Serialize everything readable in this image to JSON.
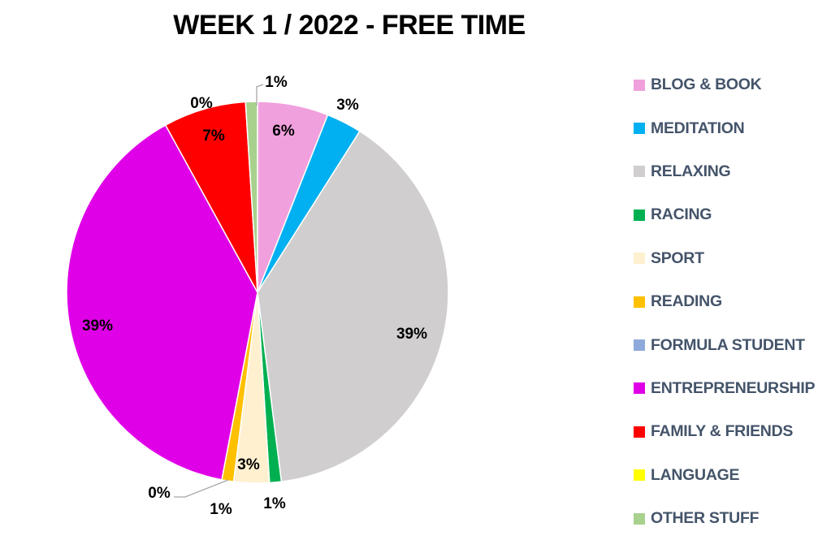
{
  "chart_data": {
    "type": "pie",
    "title": "WEEK 1 / 2022 - FREE TIME",
    "legend_position": "right",
    "series": [
      {
        "name": "BLOG & BOOK",
        "value": 6,
        "label": "6%",
        "color": "#F0A0DC"
      },
      {
        "name": "MEDITATION",
        "value": 3,
        "label": "3%",
        "color": "#00B0F0"
      },
      {
        "name": "RELAXING",
        "value": 39,
        "label": "39%",
        "color": "#D0CECE"
      },
      {
        "name": "RACING",
        "value": 1,
        "label": "1%",
        "color": "#00B050"
      },
      {
        "name": "SPORT",
        "value": 3,
        "label": "3%",
        "color": "#FFF0D0"
      },
      {
        "name": "READING",
        "value": 1,
        "label": "1%",
        "color": "#FFC000"
      },
      {
        "name": "FORMULA STUDENT",
        "value": 0,
        "label": "0%",
        "color": "#8EA9DB"
      },
      {
        "name": "ENTREPRENEURSHIP",
        "value": 39,
        "label": "39%",
        "color": "#E000E8"
      },
      {
        "name": "FAMILY & FRIENDS",
        "value": 7,
        "label": "7%",
        "color": "#FF0000"
      },
      {
        "name": "LANGUAGE",
        "value": 0,
        "label": "0%",
        "color": "#FFFF00"
      },
      {
        "name": "OTHER STUFF",
        "value": 1,
        "label": "1%",
        "color": "#A9D18E"
      }
    ]
  }
}
